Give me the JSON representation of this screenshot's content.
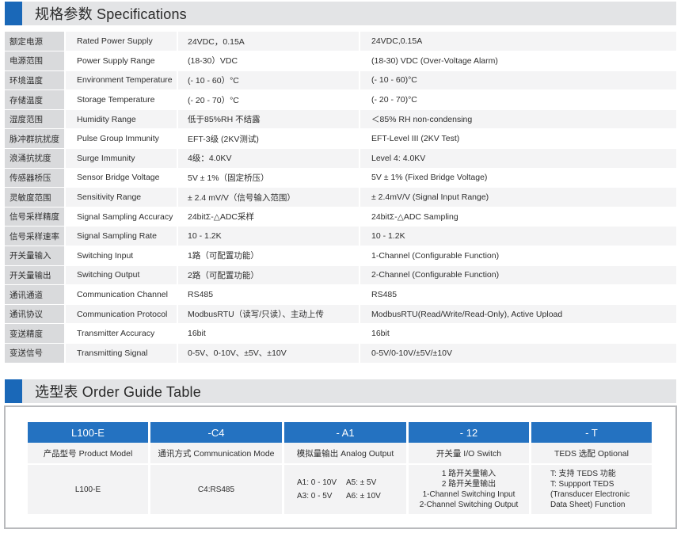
{
  "specs": {
    "title": "规格参数 Specifications",
    "rows": [
      {
        "cn": "额定电源",
        "en": "Rated Power Supply",
        "val_cn": "24VDC，0.15A",
        "val_en": "24VDC,0.15A"
      },
      {
        "cn": "电源范围",
        "en": "Power Supply Range",
        "val_cn": "(18-30）VDC",
        "val_en": "(18-30) VDC (Over-Voltage Alarm)"
      },
      {
        "cn": "环境温度",
        "en": "Environment Temperature",
        "val_cn": "(- 10 - 60）°C",
        "val_en": "(- 10 - 60)°C"
      },
      {
        "cn": "存储温度",
        "en": "Storage Temperature",
        "val_cn": "(- 20 - 70）°C",
        "val_en": "(- 20 - 70)°C"
      },
      {
        "cn": "湿度范围",
        "en": "Humidity Range",
        "val_cn": "低于85%RH 不结露",
        "val_en": "＜85% RH non-condensing"
      },
      {
        "cn": "脉冲群抗扰度",
        "en": "Pulse Group Immunity",
        "val_cn": "EFT-3级 (2KV测试)",
        "val_en": "EFT-Level III (2KV Test)"
      },
      {
        "cn": "浪涌抗扰度",
        "en": "Surge Immunity",
        "val_cn": "4级：4.0KV",
        "val_en": "Level 4: 4.0KV"
      },
      {
        "cn": "传感器桥压",
        "en": "Sensor Bridge Voltage",
        "val_cn": "5V ± 1%（固定桥压）",
        "val_en": "5V ± 1% (Fixed Bridge Voltage)"
      },
      {
        "cn": "灵敏度范围",
        "en": "Sensitivity Range",
        "val_cn": "± 2.4 mV/V（信号输入范围）",
        "val_en": "± 2.4mV/V (Signal Input Range)"
      },
      {
        "cn": "信号采样精度",
        "en": "Signal Sampling Accuracy",
        "val_cn": "24bitΣ-△ADC采样",
        "val_en": "24bitΣ-△ADC Sampling"
      },
      {
        "cn": "信号采样速率",
        "en": "Signal Sampling Rate",
        "val_cn": "10 - 1.2K",
        "val_en": "10 - 1.2K"
      },
      {
        "cn": "开关量输入",
        "en": "Switching Input",
        "val_cn": "1路（可配置功能）",
        "val_en": "1-Channel (Configurable Function)"
      },
      {
        "cn": "开关量输出",
        "en": "Switching Output",
        "val_cn": "2路（可配置功能）",
        "val_en": "2-Channel (Configurable Function)"
      },
      {
        "cn": "通讯通道",
        "en": "Communication Channel",
        "val_cn": "RS485",
        "val_en": "RS485"
      },
      {
        "cn": "通讯协议",
        "en": "Communication Protocol",
        "val_cn": "ModbusRTU（读写/只读）、主动上传",
        "val_en": "ModbusRTU(Read/Write/Read-Only), Active Upload"
      },
      {
        "cn": "变送精度",
        "en": "Transmitter Accuracy",
        "val_cn": "16bit",
        "val_en": "16bit"
      },
      {
        "cn": "变送信号",
        "en": "Transmitting Signal",
        "val_cn": "0-5V、0-10V、±5V、±10V",
        "val_en": "0-5V/0-10V/±5V/±10V"
      }
    ]
  },
  "guide": {
    "title": "选型表 Order Guide Table",
    "heads": [
      "L100-E",
      "-C4",
      "- A1",
      "- 12",
      "- T"
    ],
    "labels": [
      "产品型号 Product Model",
      "通讯方式 Communication Mode",
      "模拟量输出 Analog Output",
      "开关量 I/O Switch",
      "TEDS 选配 Optional"
    ],
    "model": "L100-E",
    "comm": "C4:RS485",
    "analog": [
      "A1: 0 - 10V",
      "A5: ± 5V",
      "A3: 0 - 5V",
      "A6: ± 10V"
    ],
    "switch": [
      "1 路开关量输入",
      "2 路开关量输出",
      "1-Channel Switching Input",
      "2-Channel Switching Output"
    ],
    "teds": [
      "T: 支持 TEDS 功能",
      "T: Suppport TEDS",
      "(Transducer Electronic",
      "Data Sheet) Function"
    ]
  },
  "colors": {
    "accent": "#1a68b8",
    "table_head": "#2472c1",
    "header_bg": "#e3e4e6"
  }
}
